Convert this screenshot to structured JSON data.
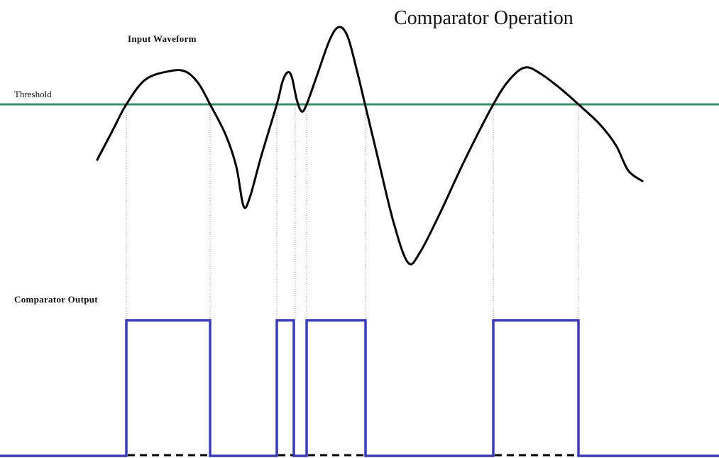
{
  "title": "Comparator Operation",
  "input_label": "Input Waveform",
  "threshold_label": "Threshold",
  "output_label": "Comparator Output"
}
